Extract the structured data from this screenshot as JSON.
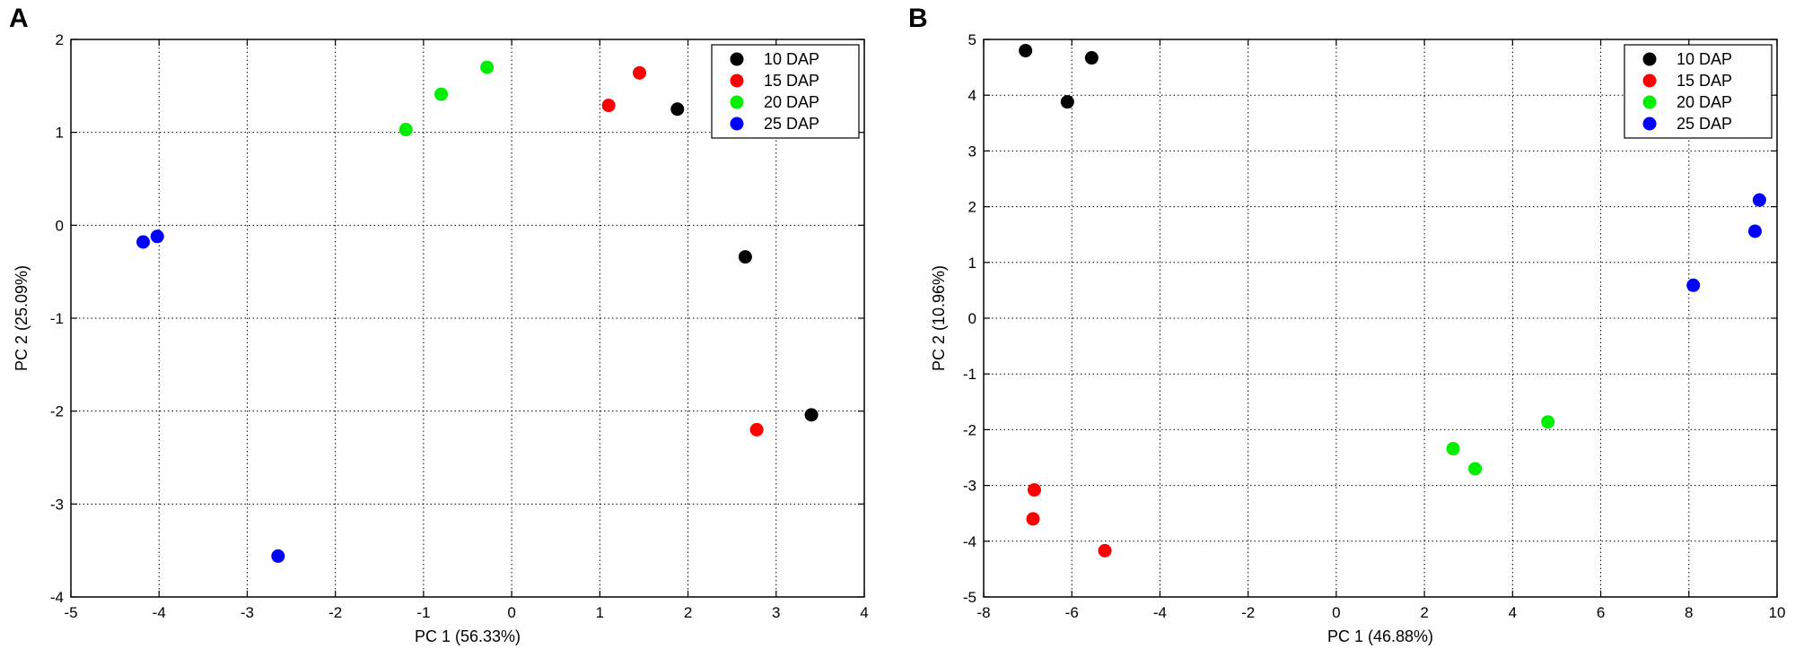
{
  "chart_data": [
    {
      "type": "scatter",
      "panel": "A",
      "title": "",
      "xlabel": "PC 1 (56.33%)",
      "ylabel": "PC 2 (25.09%)",
      "xlim": [
        -5,
        4
      ],
      "ylim": [
        -4,
        2
      ],
      "xticks": [
        -5,
        -4,
        -3,
        -2,
        -1,
        0,
        1,
        2,
        3,
        4
      ],
      "yticks": [
        -4,
        -3,
        -2,
        -1,
        0,
        1,
        2
      ],
      "grid": true,
      "legend_position": "top-right",
      "series": [
        {
          "name": "10 DAP",
          "color": "#000000",
          "points": [
            [
              1.88,
              1.25
            ],
            [
              2.65,
              -0.34
            ],
            [
              3.4,
              -2.04
            ]
          ]
        },
        {
          "name": "15 DAP",
          "color": "#ff0000",
          "points": [
            [
              1.1,
              1.29
            ],
            [
              1.45,
              1.64
            ],
            [
              2.78,
              -2.2
            ]
          ]
        },
        {
          "name": "20 DAP",
          "color": "#00ee00",
          "points": [
            [
              -1.2,
              1.03
            ],
            [
              -0.8,
              1.41
            ],
            [
              -0.28,
              1.7
            ]
          ]
        },
        {
          "name": "25 DAP",
          "color": "#0000ff",
          "points": [
            [
              -4.18,
              -0.18
            ],
            [
              -4.02,
              -0.12
            ],
            [
              -2.65,
              -3.56
            ]
          ]
        }
      ]
    },
    {
      "type": "scatter",
      "panel": "B",
      "title": "",
      "xlabel": "PC 1 (46.88%)",
      "ylabel": "PC 2 (10.96%)",
      "xlim": [
        -8,
        10
      ],
      "ylim": [
        -5,
        5
      ],
      "xticks": [
        -8,
        -6,
        -4,
        -2,
        0,
        2,
        4,
        6,
        8,
        10
      ],
      "yticks": [
        -5,
        -4,
        -3,
        -2,
        -1,
        0,
        1,
        2,
        3,
        4,
        5
      ],
      "grid": true,
      "legend_position": "top-right",
      "series": [
        {
          "name": "10 DAP",
          "color": "#000000",
          "points": [
            [
              -7.05,
              4.8
            ],
            [
              -6.1,
              3.88
            ],
            [
              -5.55,
              4.67
            ]
          ]
        },
        {
          "name": "15 DAP",
          "color": "#ff0000",
          "points": [
            [
              -6.85,
              -3.08
            ],
            [
              -6.88,
              -3.6
            ],
            [
              -5.25,
              -4.17
            ]
          ]
        },
        {
          "name": "20 DAP",
          "color": "#00ee00",
          "points": [
            [
              2.65,
              -2.34
            ],
            [
              3.15,
              -2.7
            ],
            [
              4.8,
              -1.86
            ]
          ]
        },
        {
          "name": "25 DAP",
          "color": "#0000ff",
          "points": [
            [
              8.1,
              0.59
            ],
            [
              9.5,
              1.56
            ],
            [
              9.6,
              2.12
            ]
          ]
        }
      ]
    }
  ]
}
